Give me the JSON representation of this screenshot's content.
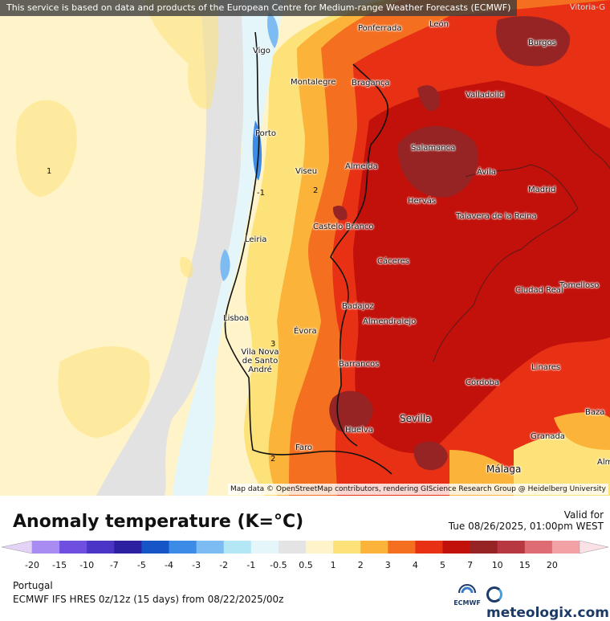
{
  "banner": {
    "notice": "This service is based on data and products of the European Centre for Medium-range Weather Forecasts (ECMWF)",
    "corner": "Vitoria-G"
  },
  "map": {
    "attribution": "Map data © OpenStreetMap contributors, rendering GIScience Research Group @ Heidelberg University",
    "contour_labels": [
      "1",
      "-1",
      "2",
      "3",
      "2"
    ],
    "cities": [
      {
        "name": "Ponferrada"
      },
      {
        "name": "León"
      },
      {
        "name": "Burgos"
      },
      {
        "name": "Vigo"
      },
      {
        "name": "Montalegre"
      },
      {
        "name": "Bragança"
      },
      {
        "name": "Valladolid"
      },
      {
        "name": "Porto"
      },
      {
        "name": "Salamanca"
      },
      {
        "name": "Viseu"
      },
      {
        "name": "Almeida"
      },
      {
        "name": "Ávila"
      },
      {
        "name": "Madrid"
      },
      {
        "name": "Hervás"
      },
      {
        "name": "Talavera de la Reina"
      },
      {
        "name": "Leiria"
      },
      {
        "name": "Castelo Branco"
      },
      {
        "name": "Cáceres"
      },
      {
        "name": "Tomelloso"
      },
      {
        "name": "Ciudad Real"
      },
      {
        "name": "Badajoz"
      },
      {
        "name": "Lisboa"
      },
      {
        "name": "Almendralejo"
      },
      {
        "name": "Évora"
      },
      {
        "name": "Vila Nova de Santo André"
      },
      {
        "name": "Barrancos"
      },
      {
        "name": "Linares"
      },
      {
        "name": "Córdoba"
      },
      {
        "name": "Sevilla"
      },
      {
        "name": "Baza"
      },
      {
        "name": "Huelva"
      },
      {
        "name": "Granada"
      },
      {
        "name": "Faro"
      },
      {
        "name": "Málaga"
      },
      {
        "name": "Alm"
      }
    ]
  },
  "footer": {
    "title": "Anomaly temperature (K=°C)",
    "valid_label": "Valid for",
    "valid_time": "Tue 08/26/2025, 01:00pm WEST",
    "region": "Portugal",
    "model": "ECMWF IFS HRES 0z/12z (15 days) from  08/22/2025/00z",
    "ecmwf_label": "ECMWF",
    "brand": "meteologix.com"
  },
  "legend": {
    "ticks": [
      "-20",
      "-15",
      "-10",
      "-7",
      "-5",
      "-4",
      "-3",
      "-2",
      "-1",
      "-0.5",
      "0.5",
      "1",
      "2",
      "3",
      "4",
      "5",
      "7",
      "10",
      "15",
      "20"
    ],
    "colors": [
      "#e4d3f7",
      "#a98cf1",
      "#6f4fe0",
      "#4a35c6",
      "#2c1fa0",
      "#1655c8",
      "#3c8be6",
      "#7dbcf2",
      "#b3e7f6",
      "#e4f6fa",
      "#e4e4e4",
      "#fff4c9",
      "#fde27a",
      "#fbb33a",
      "#f47020",
      "#e83015",
      "#c2100a",
      "#962424",
      "#b83842",
      "#de6c75",
      "#f2a2a4",
      "#fbe0e6"
    ]
  }
}
